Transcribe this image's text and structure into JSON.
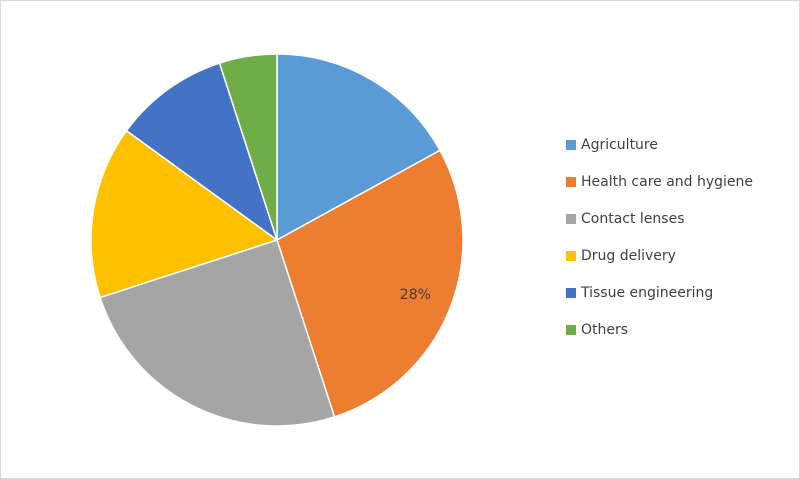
{
  "chart_data": {
    "type": "pie",
    "categories": [
      "Agriculture",
      "Health care and hygiene",
      "Contact lenses",
      "Drug delivery",
      "Tissue engineering",
      "Others"
    ],
    "values": [
      17,
      28,
      25,
      15,
      10,
      5
    ],
    "value_labels": [
      null,
      "28%",
      null,
      null,
      null,
      null
    ],
    "colors": [
      "#5b9bd5",
      "#ed7d31",
      "#a5a5a5",
      "#ffc000",
      "#4472c4",
      "#70ad47"
    ],
    "legend": "right"
  }
}
